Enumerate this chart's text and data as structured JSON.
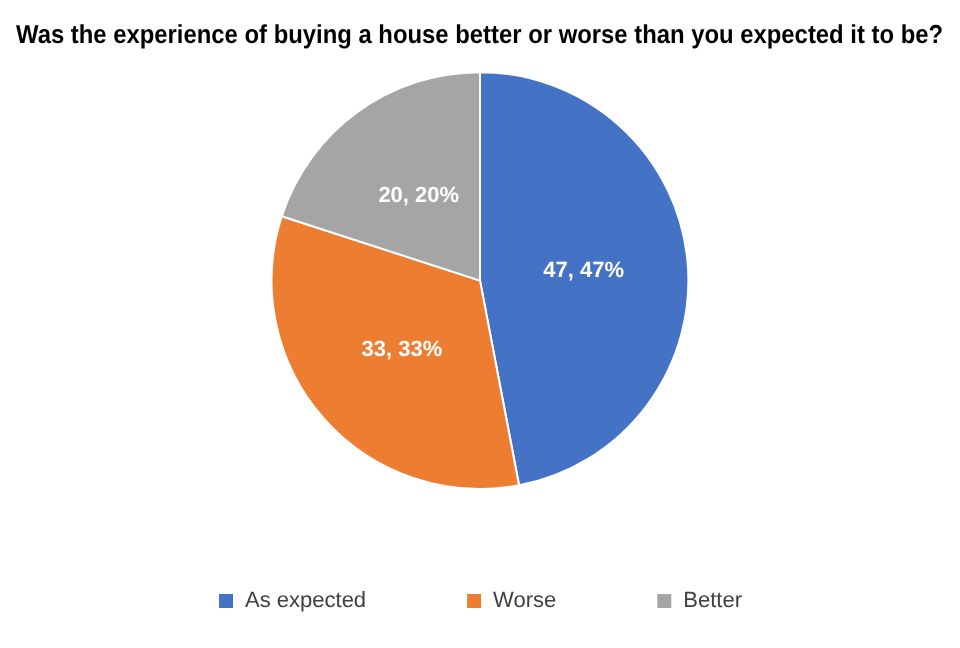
{
  "chart_data": {
    "type": "pie",
    "title": "Was the experience of buying a house better or worse than you expected it to be?",
    "categories": [
      "As expected",
      "Worse",
      "Better"
    ],
    "values": [
      47,
      33,
      20
    ],
    "colors": [
      "#4472c4",
      "#ed7d31",
      "#a5a5a5"
    ],
    "value_labels": [
      "47, 47%",
      "33, 33%",
      "20, 20%"
    ],
    "legend": "bottom"
  }
}
